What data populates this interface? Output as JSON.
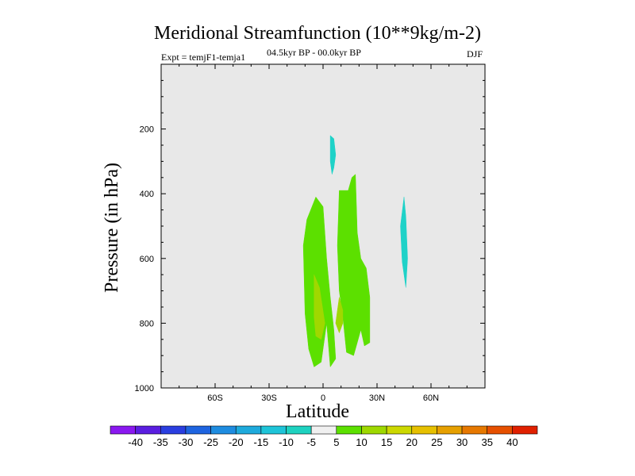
{
  "chart_data": {
    "type": "contour",
    "title": "Meridional Streamfunction (10**9kg/m-2)",
    "subtitle": "04.5kyr BP - 00.0kyr BP",
    "left_label": "Expt = temjF1-temja1",
    "right_label": "DJF",
    "xlabel": "Latitude",
    "ylabel": "Pressure (in hPa)",
    "xlim": [
      -90,
      90
    ],
    "ylim": [
      1000,
      0
    ],
    "x_ticks": [
      {
        "value": -60,
        "label": "60S"
      },
      {
        "value": -30,
        "label": "30S"
      },
      {
        "value": 0,
        "label": "0"
      },
      {
        "value": 30,
        "label": "30N"
      },
      {
        "value": 60,
        "label": "60N"
      }
    ],
    "y_ticks": [
      {
        "value": 200,
        "label": "200"
      },
      {
        "value": 400,
        "label": "400"
      },
      {
        "value": 600,
        "label": "600"
      },
      {
        "value": 800,
        "label": "800"
      },
      {
        "value": 1000,
        "label": "1000"
      }
    ],
    "background_color": "#e8e8e8",
    "regions": [
      {
        "name": "positive-5-10-main",
        "level": "5 to 10",
        "color": "#5ce000",
        "points": [
          [
            -9,
            480
          ],
          [
            -4,
            410
          ],
          [
            0,
            440
          ],
          [
            2,
            600
          ],
          [
            4,
            720
          ],
          [
            6,
            820
          ],
          [
            7,
            910
          ],
          [
            4,
            935
          ],
          [
            2,
            800
          ],
          [
            -1,
            920
          ],
          [
            -5,
            935
          ],
          [
            -8,
            880
          ],
          [
            -10,
            770
          ],
          [
            -11,
            560
          ]
        ]
      },
      {
        "name": "positive-5-10-right",
        "level": "5 to 10",
        "color": "#5ce000",
        "points": [
          [
            9,
            390
          ],
          [
            14,
            390
          ],
          [
            16,
            350
          ],
          [
            18,
            340
          ],
          [
            19,
            520
          ],
          [
            21,
            600
          ],
          [
            24,
            630
          ],
          [
            26,
            720
          ],
          [
            26,
            860
          ],
          [
            23,
            870
          ],
          [
            21,
            820
          ],
          [
            19,
            860
          ],
          [
            17,
            900
          ],
          [
            13,
            890
          ],
          [
            11,
            780
          ],
          [
            9,
            700
          ],
          [
            8,
            560
          ]
        ]
      },
      {
        "name": "positive-10-15-a",
        "level": "10 to 15",
        "color": "#a0d800",
        "points": [
          [
            -5,
            650
          ],
          [
            -2,
            690
          ],
          [
            1,
            800
          ],
          [
            -1,
            850
          ],
          [
            -4,
            840
          ],
          [
            -5,
            780
          ]
        ]
      },
      {
        "name": "positive-10-15-b",
        "level": "10 to 15",
        "color": "#a0d800",
        "points": [
          [
            9,
            720
          ],
          [
            11,
            760
          ],
          [
            11,
            800
          ],
          [
            9,
            830
          ],
          [
            7,
            800
          ],
          [
            8,
            760
          ]
        ]
      },
      {
        "name": "negative-upper",
        "level": "-10 to -5",
        "color": "#1ed2c8",
        "points": [
          [
            4,
            220
          ],
          [
            6,
            230
          ],
          [
            7,
            280
          ],
          [
            6,
            320
          ],
          [
            5,
            340
          ],
          [
            4,
            300
          ]
        ]
      },
      {
        "name": "negative-right",
        "level": "-10 to -5",
        "color": "#1ed2c8",
        "points": [
          [
            45,
            410
          ],
          [
            46,
            470
          ],
          [
            47,
            600
          ],
          [
            46,
            690
          ],
          [
            44,
            610
          ],
          [
            43,
            500
          ]
        ]
      }
    ],
    "colorbar": {
      "labels": [
        "-40",
        "-35",
        "-30",
        "-25",
        "-20",
        "-15",
        "-10",
        "-5",
        "5",
        "10",
        "15",
        "20",
        "25",
        "30",
        "35",
        "40"
      ],
      "colors": [
        "#8a18f0",
        "#5a1ee0",
        "#2a3ee0",
        "#1e64e0",
        "#1e8ce0",
        "#1eaadc",
        "#1ec4d8",
        "#1ed2c0",
        "#f0f0f0",
        "#5ce000",
        "#9ed800",
        "#ccd800",
        "#e6c000",
        "#e6a000",
        "#e67800",
        "#e65000",
        "#e02000"
      ]
    }
  }
}
